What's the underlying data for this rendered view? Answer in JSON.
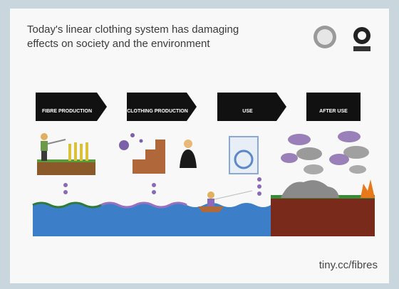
{
  "header": {
    "title": "Today's linear clothing system has damaging effects on society and the environment"
  },
  "stages": [
    {
      "label": "FIBRE PRODUCTION"
    },
    {
      "label": "CLOTHING PRODUCTION"
    },
    {
      "label": "USE"
    },
    {
      "label": "AFTER USE"
    }
  ],
  "footer": {
    "link": "tiny.cc/fibres"
  }
}
